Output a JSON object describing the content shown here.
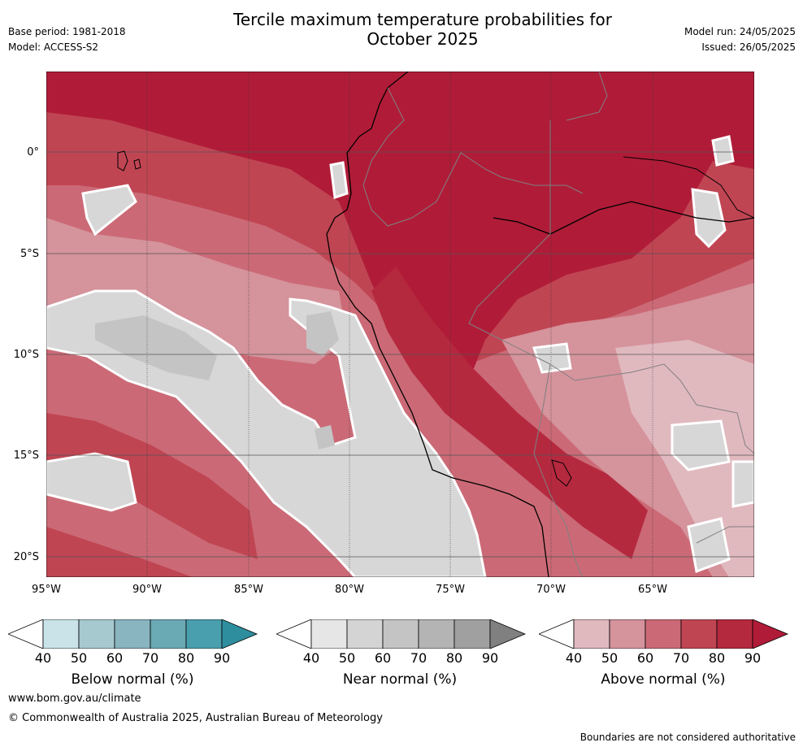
{
  "header": {
    "title_line1": "Tercile maximum temperature probabilities for",
    "title_line2": "October 2025",
    "base_period": "Base period: 1981-2018",
    "model": "Model: ACCESS-S2",
    "model_run": "Model run: 24/05/2025",
    "issued": "Issued: 26/05/2025"
  },
  "map": {
    "lat_labels": [
      "0°",
      "5°S",
      "10°S",
      "15°S",
      "20°S"
    ],
    "lon_labels": [
      "95°W",
      "90°W",
      "85°W",
      "80°W",
      "75°W",
      "70°W",
      "65°W"
    ],
    "colors": {
      "above_90": "#b01c38",
      "above_80": "#c04553",
      "above_70": "#cb6a76",
      "above_60": "#d5939c",
      "above_50": "#e0b9bf",
      "near_40": "#e6e6e6",
      "near_50": "#d7d7d7",
      "near_60": "#c4c4c4",
      "coast": "#000000",
      "border": "#808080"
    }
  },
  "legends": [
    {
      "title": "Below normal (%)",
      "ticks": [
        "40",
        "50",
        "60",
        "70",
        "80",
        "90"
      ],
      "colors": [
        "#ffffff",
        "#c9e3e8",
        "#a6c9cf",
        "#88b5c0",
        "#6aaab5",
        "#4a9fae",
        "#2e8e9e"
      ]
    },
    {
      "title": "Near normal (%)",
      "ticks": [
        "40",
        "50",
        "60",
        "70",
        "80",
        "90"
      ],
      "colors": [
        "#ffffff",
        "#e6e6e6",
        "#d4d4d4",
        "#c4c4c4",
        "#b4b4b4",
        "#a0a0a0",
        "#808080"
      ]
    },
    {
      "title": "Above normal (%)",
      "ticks": [
        "40",
        "50",
        "60",
        "70",
        "80",
        "90"
      ],
      "colors": [
        "#ffffff",
        "#e0b9bf",
        "#d5939c",
        "#cb6a76",
        "#c04553",
        "#b5293f",
        "#b01c38"
      ]
    }
  ],
  "footer": {
    "url": "www.bom.gov.au/climate",
    "copyright": "© Commonwealth of Australia 2025, Australian Bureau of Meteorology",
    "disclaimer": "Boundaries are not considered authoritative"
  }
}
